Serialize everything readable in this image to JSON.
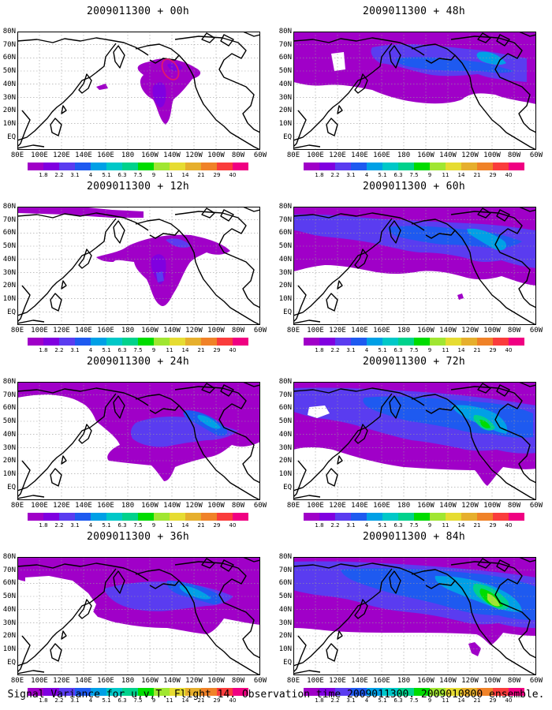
{
  "caption": "Signal Variance for u,v,T. Flight 14. Observation time 2009011300. 2009010800 ensemble.",
  "lat_labels": [
    "80N",
    "70N",
    "60N",
    "50N",
    "40N",
    "30N",
    "20N",
    "10N",
    "EQ"
  ],
  "lon_labels": [
    "80E",
    "100E",
    "120E",
    "140E",
    "160E",
    "180",
    "160W",
    "140W",
    "120W",
    "100W",
    "80W",
    "60W"
  ],
  "legend": {
    "values": [
      "1.8",
      "2.2",
      "3.1",
      "4",
      "5.1",
      "6.3",
      "7.5",
      "9",
      "11",
      "14",
      "21",
      "29",
      "40"
    ],
    "colors": [
      "#a000c8",
      "#8000e0",
      "#5a3cf0",
      "#1e5af0",
      "#00a0e6",
      "#00c8c8",
      "#00d28c",
      "#00dc00",
      "#a0e632",
      "#e6dc32",
      "#e6af2d",
      "#f08228",
      "#fa3c3c",
      "#f00082"
    ]
  },
  "panels": [
    {
      "title": "2009011300 + 00h"
    },
    {
      "title": "2009011300 + 48h"
    },
    {
      "title": "2009011300 + 12h"
    },
    {
      "title": "2009011300 + 60h"
    },
    {
      "title": "2009011300 + 24h"
    },
    {
      "title": "2009011300 + 72h"
    },
    {
      "title": "2009011300 + 36h"
    },
    {
      "title": "2009011300 + 84h"
    }
  ]
}
